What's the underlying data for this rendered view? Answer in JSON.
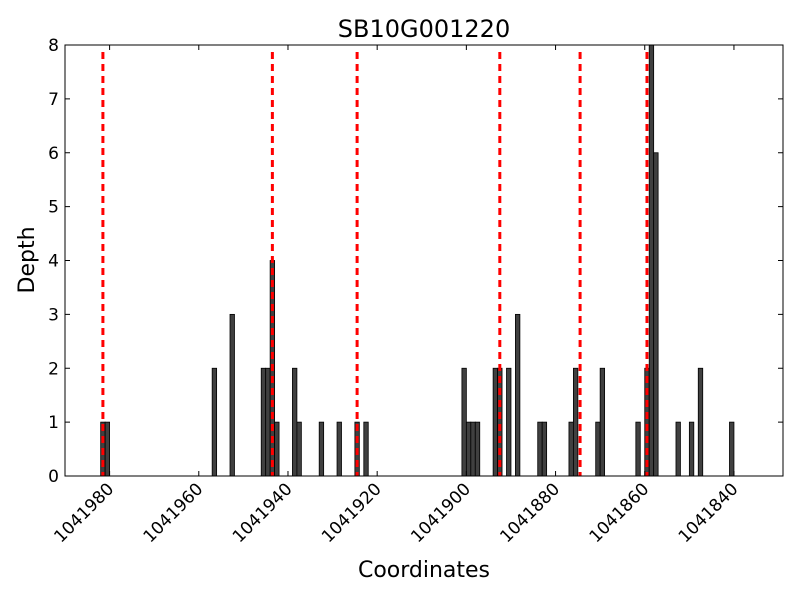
{
  "chart_data": {
    "type": "bar",
    "title": "SB10G001220",
    "xlabel": "Coordinates",
    "ylabel": "Depth",
    "x_direction": "reversed",
    "xlim": [
      1041990,
      1041829
    ],
    "ylim": [
      0,
      8
    ],
    "x_ticks": [
      1041980,
      1041960,
      1041940,
      1041920,
      1041900,
      1041880,
      1041860,
      1041840
    ],
    "y_ticks": [
      0,
      1,
      2,
      3,
      4,
      5,
      6,
      7,
      8
    ],
    "bar_color": "#404040",
    "bar_edge_color": "#000000",
    "marker_color": "#ff0000",
    "bars": [
      {
        "x": 1041982,
        "depth": 1
      },
      {
        "x": 1041981,
        "depth": 1
      },
      {
        "x": 1041957,
        "depth": 2
      },
      {
        "x": 1041953,
        "depth": 3
      },
      {
        "x": 1041946,
        "depth": 2
      },
      {
        "x": 1041945,
        "depth": 2
      },
      {
        "x": 1041944,
        "depth": 4
      },
      {
        "x": 1041943,
        "depth": 1
      },
      {
        "x": 1041939,
        "depth": 2
      },
      {
        "x": 1041938,
        "depth": 1
      },
      {
        "x": 1041933,
        "depth": 1
      },
      {
        "x": 1041929,
        "depth": 1
      },
      {
        "x": 1041925,
        "depth": 1
      },
      {
        "x": 1041923,
        "depth": 1
      },
      {
        "x": 1041901,
        "depth": 2
      },
      {
        "x": 1041900,
        "depth": 1
      },
      {
        "x": 1041899,
        "depth": 1
      },
      {
        "x": 1041898,
        "depth": 1
      },
      {
        "x": 1041894,
        "depth": 2
      },
      {
        "x": 1041893,
        "depth": 2
      },
      {
        "x": 1041891,
        "depth": 2
      },
      {
        "x": 1041889,
        "depth": 3
      },
      {
        "x": 1041884,
        "depth": 1
      },
      {
        "x": 1041883,
        "depth": 1
      },
      {
        "x": 1041877,
        "depth": 1
      },
      {
        "x": 1041876,
        "depth": 2
      },
      {
        "x": 1041871,
        "depth": 1
      },
      {
        "x": 1041870,
        "depth": 2
      },
      {
        "x": 1041862,
        "depth": 1
      },
      {
        "x": 1041860,
        "depth": 2
      },
      {
        "x": 1041859,
        "depth": 8
      },
      {
        "x": 1041858,
        "depth": 6
      },
      {
        "x": 1041853,
        "depth": 1
      },
      {
        "x": 1041850,
        "depth": 1
      },
      {
        "x": 1041848,
        "depth": 2
      },
      {
        "x": 1041841,
        "depth": 1
      }
    ],
    "markers": [
      1041981.5,
      1041943.5,
      1041924.5,
      1041892.5,
      1041874.5,
      1041859.5
    ]
  }
}
